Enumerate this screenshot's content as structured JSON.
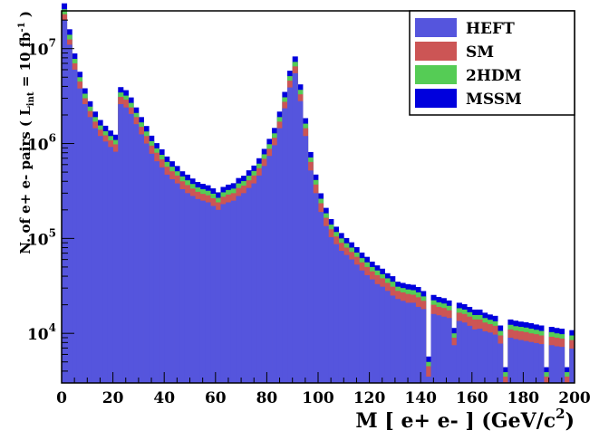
{
  "chart_data": {
    "type": "area",
    "title": "",
    "xlabel": "M [ e+ e- ] (GeV/c",
    "xlabel_sup": "2",
    "xlabel_close": ")",
    "ylabel_prefix": "N. of e+ e- pairs  ( L",
    "ylabel_sub": "int",
    "ylabel_mid": " = 10 fb",
    "ylabel_sup": "-1",
    "ylabel_suffix": " )",
    "xlim": [
      0,
      200
    ],
    "ylim": [
      3000,
      25000000
    ],
    "y_scale": "log",
    "x_ticks": [
      "0",
      "20",
      "40",
      "60",
      "80",
      "100",
      "120",
      "140",
      "160",
      "180",
      "200"
    ],
    "y_ticks": [
      {
        "base": "10",
        "exp": "4",
        "value": 10000
      },
      {
        "base": "10",
        "exp": "5",
        "value": 100000
      },
      {
        "base": "10",
        "exp": "6",
        "value": 1000000
      },
      {
        "base": "10",
        "exp": "7",
        "value": 10000000
      }
    ],
    "legend_position": "top-right",
    "bin_width": 2,
    "series": [
      {
        "name": "HEFT",
        "color": "#5555dd",
        "values": [
          20000000,
          11000000,
          6000000,
          3800000,
          2600000,
          1900000,
          1450000,
          1200000,
          1050000,
          920000,
          820000,
          2600000,
          2400000,
          2050000,
          1600000,
          1250000,
          1000000,
          780000,
          650000,
          560000,
          470000,
          420000,
          380000,
          330000,
          300000,
          280000,
          260000,
          250000,
          240000,
          220000,
          200000,
          230000,
          240000,
          250000,
          280000,
          300000,
          340000,
          380000,
          460000,
          580000,
          740000,
          960000,
          1450000,
          2350000,
          3900000,
          5500000,
          2800000,
          1200000,
          520000,
          300000,
          190000,
          135000,
          103000,
          87000,
          74000,
          67000,
          60000,
          53000,
          46000,
          41000,
          37000,
          33000,
          31000,
          28000,
          25000,
          23000,
          22000,
          21000,
          21000,
          19000,
          18000,
          3500,
          16000,
          15500,
          15000,
          14500,
          7500,
          13500,
          13000,
          12000,
          11000,
          11200,
          10500,
          10200,
          9700,
          7800,
          2800,
          9000,
          8700,
          8500,
          8300,
          8100,
          7900,
          7700,
          3000,
          7500,
          7300,
          7200,
          3000,
          6900
        ]
      },
      {
        "name": "SM",
        "color": "#cc5555",
        "values": [
          23000000,
          12500000,
          7000000,
          4500000,
          3000000,
          2200000,
          1700000,
          1400000,
          1220000,
          1080000,
          980000,
          3100000,
          2900000,
          2400000,
          1900000,
          1500000,
          1200000,
          950000,
          800000,
          680000,
          570000,
          510000,
          460000,
          400000,
          365000,
          335000,
          310000,
          295000,
          285000,
          265000,
          240000,
          275000,
          290000,
          300000,
          340000,
          360000,
          410000,
          460000,
          550000,
          690000,
          880000,
          1150000,
          1700000,
          2750000,
          4600000,
          6500000,
          3300000,
          1450000,
          640000,
          370000,
          235000,
          165000,
          125000,
          105000,
          90000,
          80000,
          72000,
          64000,
          56000,
          50000,
          45000,
          41000,
          38000,
          34000,
          31000,
          28000,
          27000,
          26000,
          25500,
          24000,
          22000,
          4500,
          20000,
          19000,
          18500,
          17500,
          9000,
          16500,
          16000,
          15000,
          14000,
          14000,
          13000,
          12500,
          12000,
          9500,
          3500,
          11000,
          10700,
          10500,
          10300,
          10000,
          9800,
          9500,
          3500,
          9200,
          9000,
          8800,
          3500,
          8500
        ]
      },
      {
        "name": "2HDM",
        "color": "#55cc55",
        "values": [
          26000000,
          14000000,
          7800000,
          5000000,
          3350000,
          2450000,
          1900000,
          1550000,
          1350000,
          1200000,
          1090000,
          3450000,
          3200000,
          2680000,
          2100000,
          1670000,
          1340000,
          1060000,
          890000,
          760000,
          640000,
          570000,
          510000,
          450000,
          410000,
          375000,
          345000,
          330000,
          318000,
          296000,
          268000,
          306000,
          324000,
          335000,
          380000,
          402000,
          458000,
          514000,
          614000,
          770000,
          983000,
          1280000,
          1900000,
          3070000,
          5130000,
          7250000,
          3680000,
          1620000,
          714000,
          413000,
          262000,
          184000,
          140000,
          117000,
          100000,
          89000,
          80000,
          71000,
          62000,
          56000,
          50000,
          46000,
          42000,
          38000,
          35000,
          31000,
          30000,
          29000,
          28500,
          27000,
          24500,
          5000,
          22300,
          21200,
          20600,
          19500,
          10000,
          18400,
          17800,
          16700,
          15600,
          15600,
          14500,
          13900,
          13400,
          10600,
          3900,
          12300,
          11900,
          11700,
          11500,
          11200,
          10900,
          10600,
          3900,
          10300,
          10000,
          9800,
          3900,
          9500
        ]
      },
      {
        "name": "MSSM",
        "color": "#0000dd",
        "values": [
          30000000,
          16000000,
          8900000,
          5700000,
          3820000,
          2790000,
          2170000,
          1770000,
          1540000,
          1370000,
          1240000,
          3930000,
          3650000,
          3060000,
          2400000,
          1900000,
          1530000,
          1210000,
          1010000,
          870000,
          730000,
          650000,
          580000,
          510000,
          470000,
          428000,
          393000,
          376000,
          363000,
          337000,
          306000,
          349000,
          369000,
          382000,
          433000,
          458000,
          522000,
          586000,
          700000,
          878000,
          1120000,
          1460000,
          2170000,
          3500000,
          5850000,
          8270000,
          4200000,
          1850000,
          814000,
          471000,
          299000,
          210000,
          160000,
          133000,
          114000,
          101000,
          91000,
          81000,
          71000,
          64000,
          57000,
          52000,
          48000,
          43000,
          40000,
          35000,
          34000,
          33000,
          32500,
          30800,
          27900,
          5700,
          25400,
          24200,
          23500,
          22200,
          11400,
          21000,
          20300,
          19000,
          17800,
          17800,
          16500,
          15800,
          15300,
          12100,
          4400,
          14000,
          13600,
          13300,
          13100,
          12800,
          12400,
          12100,
          4400,
          11700,
          11400,
          11200,
          4400,
          10800
        ]
      }
    ]
  }
}
